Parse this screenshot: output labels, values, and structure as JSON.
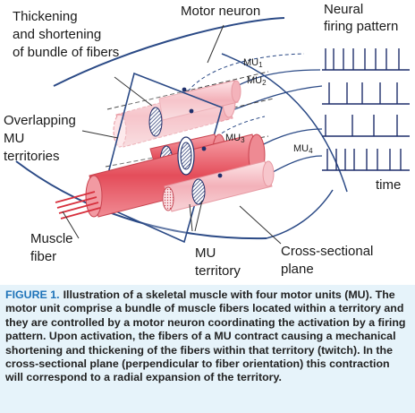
{
  "labels": {
    "thickening": [
      "Thickening",
      "and shortening",
      "of bundle of fibers"
    ],
    "motor_neuron": "Motor neuron",
    "neural_firing": [
      "Neural",
      "firing pattern"
    ],
    "overlapping": [
      "Overlapping",
      "MU",
      "territories"
    ],
    "mu": {
      "prefix": "MU",
      "numbers": [
        "1",
        "2",
        "3",
        "4"
      ]
    },
    "time": "time",
    "muscle_fiber": [
      "Muscle",
      "fiber"
    ],
    "mu_territory": [
      "MU",
      "territory"
    ],
    "cross_sectional": [
      "Cross-sectional",
      "plane"
    ]
  },
  "caption": {
    "label": "FIGURE 1.",
    "text": "Illustration of a skeletal muscle with four motor units (MU). The motor unit comprise a bundle of muscle fibers located within a territory and they are controlled by a motor neuron coordinating the activation by a firing pattern. Upon activation, the fibers of a MU contract causing a mechanical shortening and thickening of the fibers within that territory (twitch). In the cross-sectional plane (perpendicular to fiber orientation) this contraction will correspond to a radial expansion of the territory."
  },
  "colors": {
    "caption_background": "#e6f3fa",
    "caption_label": "#1e73b9",
    "neuron_lines": "#2b4a86",
    "fiber_light": "#f6c9cf",
    "fiber_dark": "#e8626d"
  }
}
